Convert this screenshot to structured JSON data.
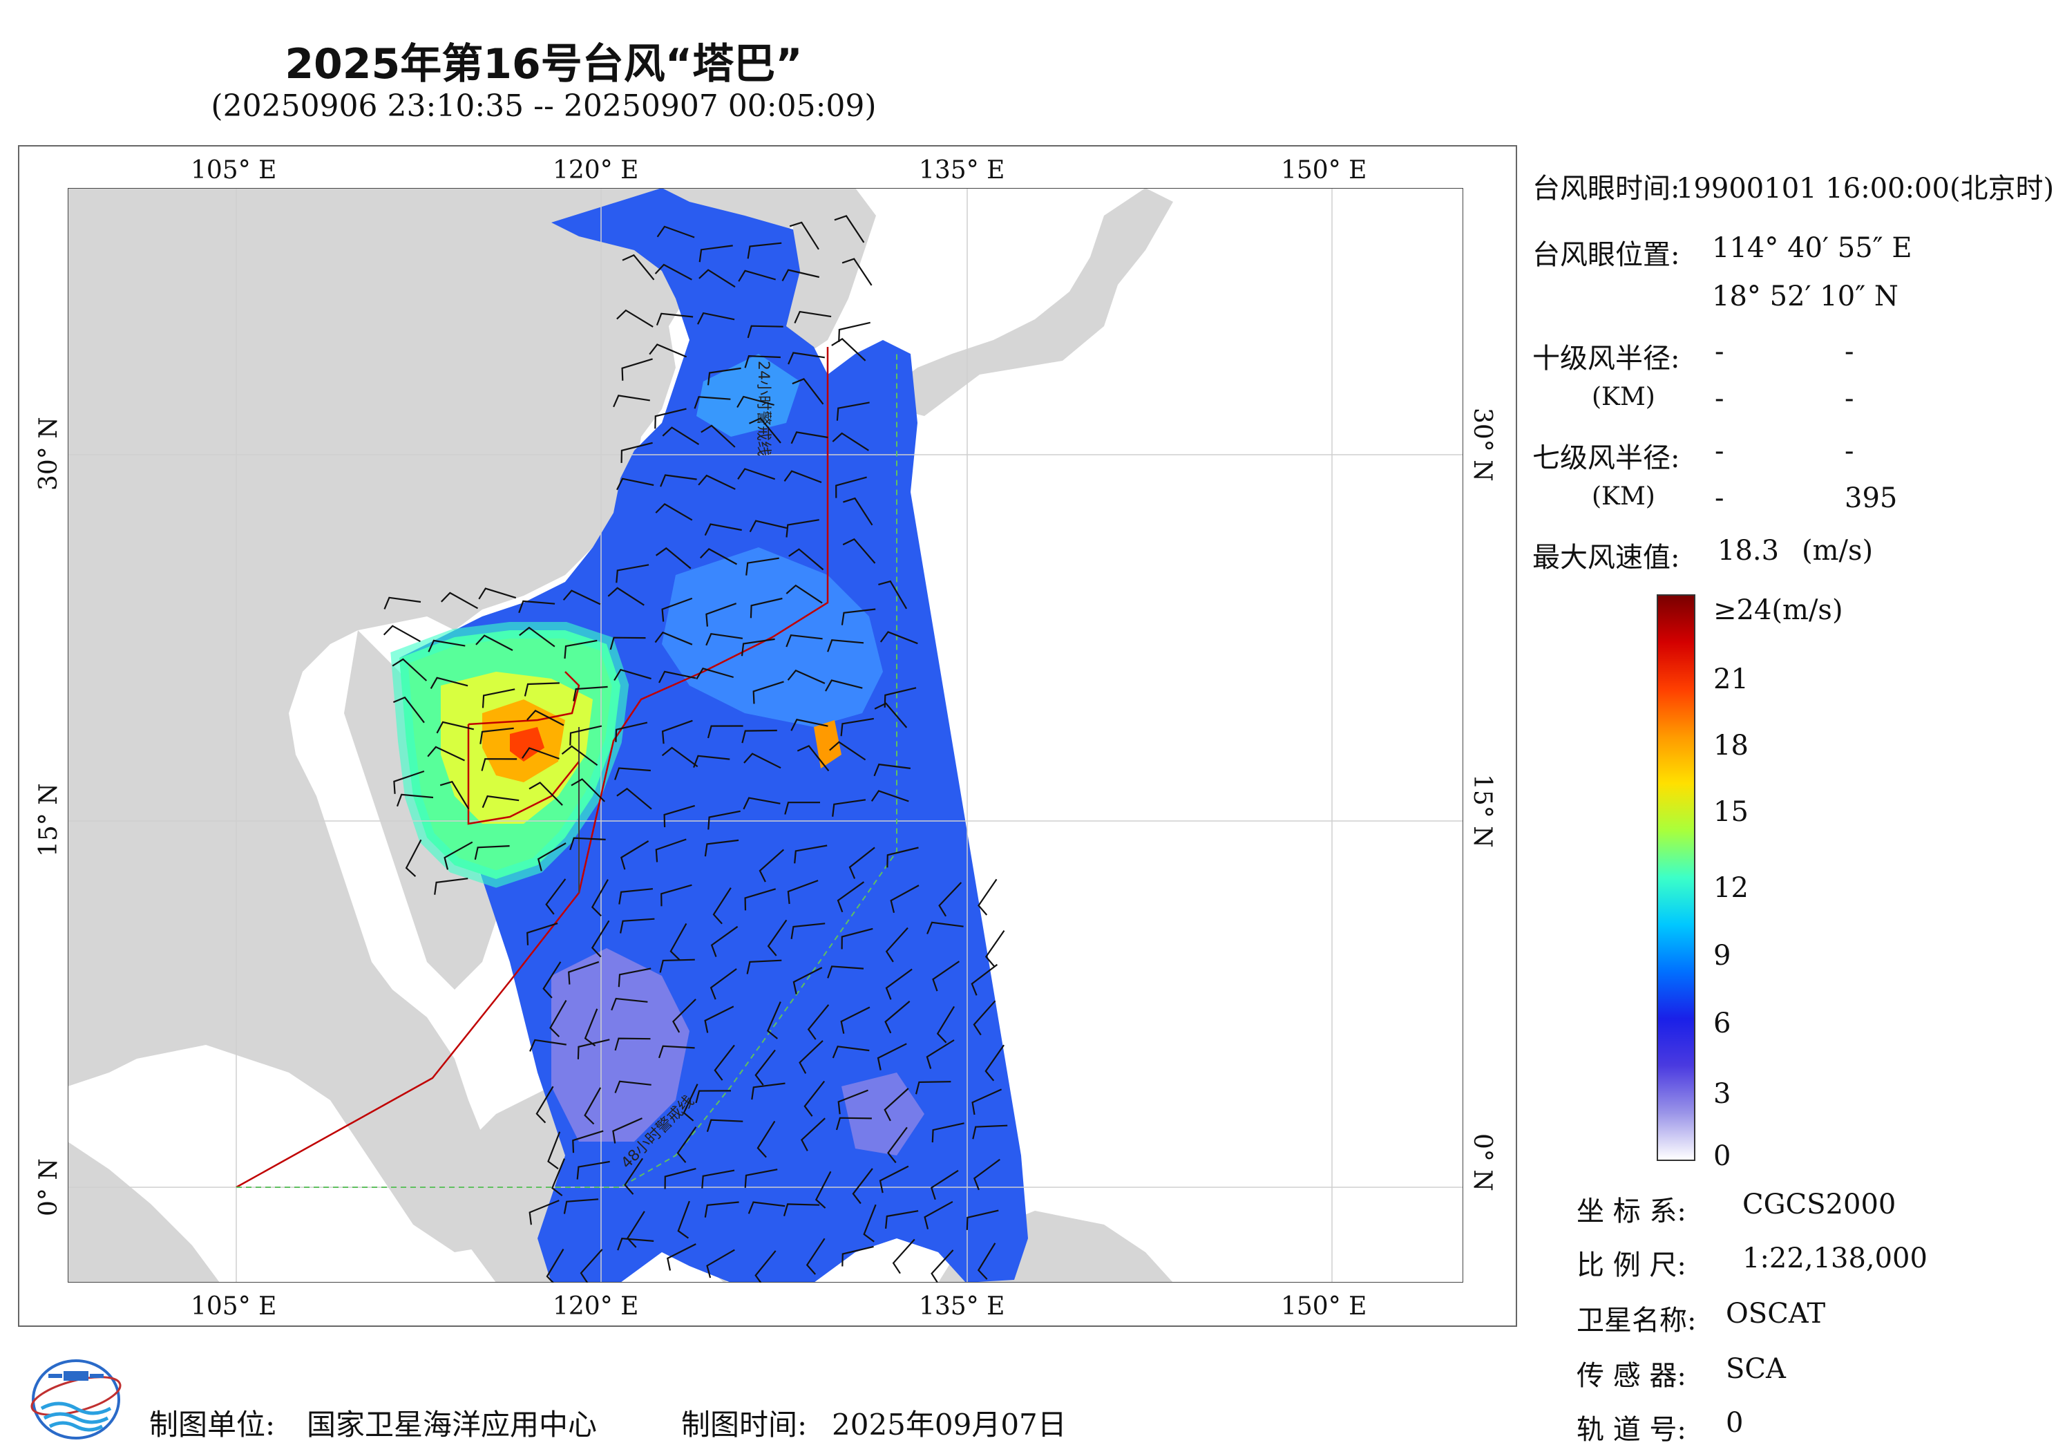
{
  "title": "2025年第16号台风“塔巴”",
  "subtitle": "(20250906 23:10:35 -- 20250907 00:05:09)",
  "map": {
    "lon_ticks": [
      "105° E",
      "120° E",
      "135° E",
      "150° E"
    ],
    "lat_ticks": [
      "30° N",
      "15° N",
      "0° N"
    ],
    "track_labels": [
      "24小时警戒线",
      "48小时警戒线"
    ]
  },
  "info": {
    "eye_time_label": "台风眼时间:",
    "eye_time_value": "19900101 16:00:00(北京时)",
    "eye_pos_label": "台风眼位置:",
    "eye_lon": "114° 40′ 55″ E",
    "eye_lat": "18° 52′ 10″ N",
    "r10_label": "十级风半径:",
    "r10_unit": "(KM)",
    "r10_values": [
      "-",
      "-",
      "-",
      "-"
    ],
    "r7_label": "七级风半径:",
    "r7_unit": "(KM)",
    "r7_values": [
      "-",
      "-",
      "-",
      "395"
    ],
    "max_wind_label": "最大风速值:",
    "max_wind_value": "18.3",
    "max_wind_unit": "(m/s)"
  },
  "colorbar": {
    "labels": [
      "≥24(m/s)",
      "21",
      "18",
      "15",
      "12",
      "9",
      "6",
      "3",
      "0"
    ],
    "colors": [
      "#7a0000",
      "#d40000",
      "#ff4000",
      "#ff9a00",
      "#ffe000",
      "#a8ff3c",
      "#3cffc8",
      "#00c8ff",
      "#0070ff",
      "#1a20e8",
      "#4a3ae0",
      "#9a94e8",
      "#ffffff"
    ]
  },
  "meta": {
    "crs_label": "坐 标 系:",
    "crs_value": "CGCS2000",
    "scale_label": "比 例 尺:",
    "scale_value": "1:22,138,000",
    "sat_label": "卫星名称:",
    "sat_value": "OSCAT",
    "sensor_label": "传 感 器:",
    "sensor_value": "SCA",
    "orbit_label": "轨 道 号:",
    "orbit_value": "0"
  },
  "footer": {
    "org_label": "制图单位:",
    "org_value": "国家卫星海洋应用中心",
    "date_label": "制图时间:",
    "date_value": "2025年09月07日"
  },
  "colors": {
    "land": "#d6d6d6",
    "ocean": "#ffffff",
    "track_red": "#c00000",
    "track_green": "#60c060"
  }
}
